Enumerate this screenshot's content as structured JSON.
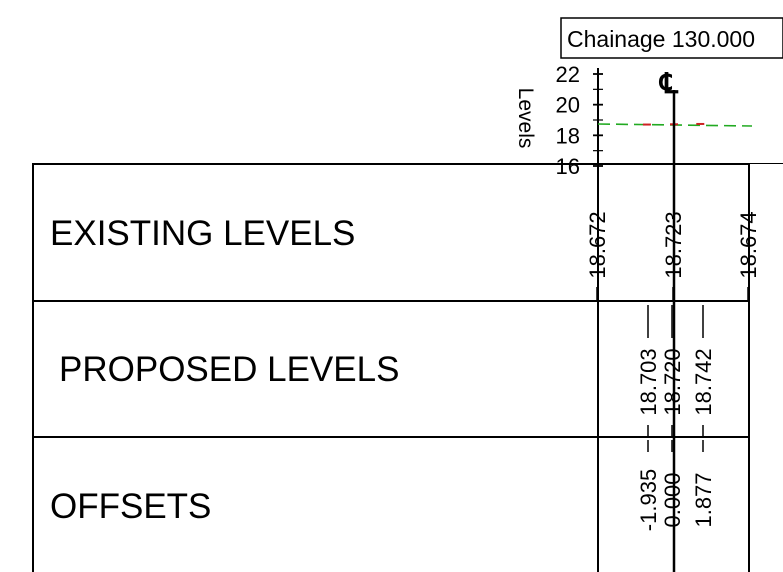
{
  "chainage_label": "Chainage 130.000",
  "axis": {
    "title": "Levels",
    "ticks": [
      "22",
      "20",
      "18",
      "16"
    ],
    "range": [
      16,
      22
    ]
  },
  "centreline_symbol": "℄",
  "rows": {
    "existing": "EXISTING LEVELS",
    "proposed": "PROPOSED LEVELS",
    "offsets": "OFFSETS"
  },
  "existing_levels": [
    "18.672",
    "18.723",
    "18.674"
  ],
  "proposed_levels": [
    "18.703",
    "18.720",
    "18.742"
  ],
  "offset_values": [
    "-1.935",
    "0.000",
    "1.877"
  ],
  "profile": {
    "existing_points": [
      {
        "offset": -1.935,
        "level": 18.672
      },
      {
        "offset": 0.0,
        "level": 18.723
      },
      {
        "offset": 1.877,
        "level": 18.674
      }
    ],
    "proposed_points": [
      {
        "offset": -1.935,
        "level": 18.703
      },
      {
        "offset": 0.0,
        "level": 18.72
      },
      {
        "offset": 1.877,
        "level": 18.742
      }
    ]
  },
  "colors": {
    "existing_line": "#22aa22",
    "proposed_marker": "#cc2222",
    "line": "#000000"
  }
}
